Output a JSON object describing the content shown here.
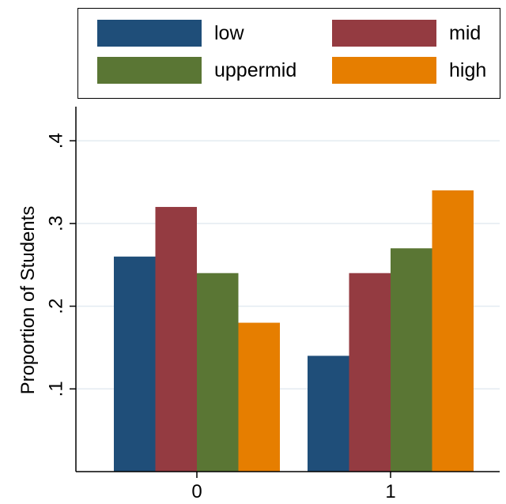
{
  "colors": {
    "low": "#1f4e79",
    "mid": "#943b41",
    "uppermid": "#5a7634",
    "high": "#e67e00",
    "grid": "#e3ebf1",
    "axis": "#000000"
  },
  "chart_data": {
    "type": "bar",
    "title": "",
    "xlabel": "",
    "ylabel": "Proportion of Students",
    "categories": [
      "0",
      "1"
    ],
    "series": [
      {
        "name": "low",
        "values": [
          0.26,
          0.14
        ]
      },
      {
        "name": "mid",
        "values": [
          0.32,
          0.24
        ]
      },
      {
        "name": "uppermid",
        "values": [
          0.24,
          0.27
        ]
      },
      {
        "name": "high",
        "values": [
          0.18,
          0.34
        ]
      }
    ],
    "ylim": [
      0,
      0.4
    ],
    "yticks": [
      ".1",
      ".2",
      ".3",
      ".4"
    ],
    "grid": true,
    "legend": "top"
  }
}
